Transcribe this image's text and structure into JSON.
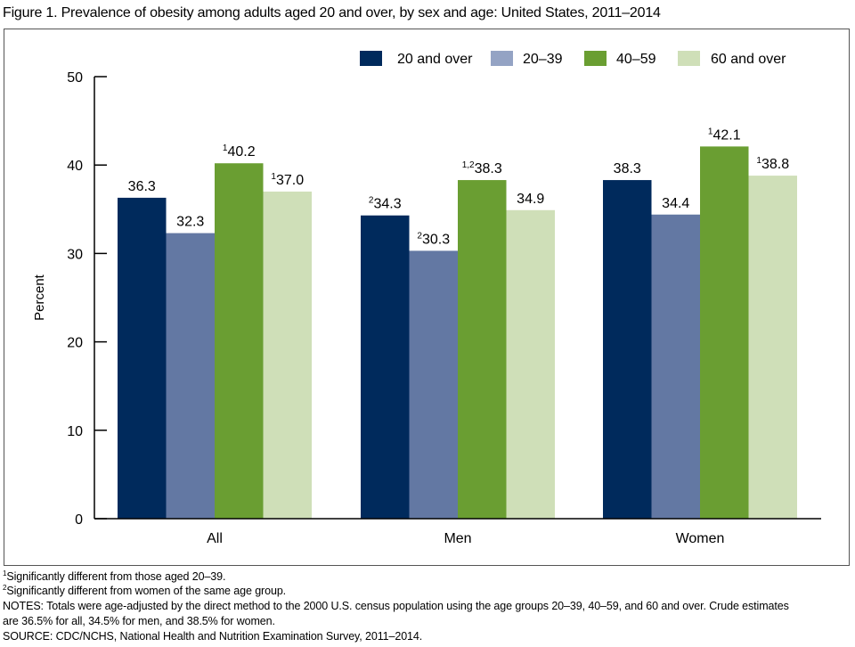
{
  "figure": {
    "title": "Figure 1. Prevalence of obesity among adults aged 20 and over, by sex and age: United States, 2011–2014"
  },
  "footnotes": [
    {
      "mark": "1",
      "text": "Significantly different from those aged 20–39."
    },
    {
      "mark": "2",
      "text": "Significantly different from women of the same age group."
    }
  ],
  "notes": {
    "line1": "NOTES: Totals were age-adjusted by the direct method to the 2000 U.S. census population using the age groups 20–39, 40–59, and 60 and over. Crude estimates",
    "line2": "are 36.5% for all, 34.5% for men, and 38.5% for women."
  },
  "source": "SOURCE: CDC/NCHS, National Health and Nutrition Examination Survey, 2011–2014.",
  "chart_data": {
    "type": "bar",
    "title": "Prevalence of obesity among adults aged 20 and over, by sex and age: United States, 2011–2014",
    "xlabel": "",
    "ylabel": "Percent",
    "ylim": [
      0,
      50
    ],
    "yticks": [
      0,
      10,
      20,
      30,
      40,
      50
    ],
    "grid": false,
    "legend_position": "top-right",
    "categories": [
      "All",
      "Men",
      "Women"
    ],
    "series": [
      {
        "name": "20 and over",
        "color": "#002a5c",
        "values": [
          36.3,
          34.3,
          38.3
        ],
        "marks": [
          "",
          "2",
          ""
        ]
      },
      {
        "name": "20–39",
        "color": "#6378a3",
        "legend_color": "#94a3c4",
        "values": [
          32.3,
          30.3,
          34.4
        ],
        "marks": [
          "",
          "2",
          ""
        ]
      },
      {
        "name": "40–59",
        "color": "#6a9e32",
        "values": [
          40.2,
          38.3,
          42.1
        ],
        "marks": [
          "1",
          "1,2",
          "1"
        ]
      },
      {
        "name": "60 and over",
        "color": "#cfdfb8",
        "values": [
          37.0,
          34.9,
          38.8
        ],
        "marks": [
          "1",
          "",
          "1"
        ]
      }
    ]
  }
}
